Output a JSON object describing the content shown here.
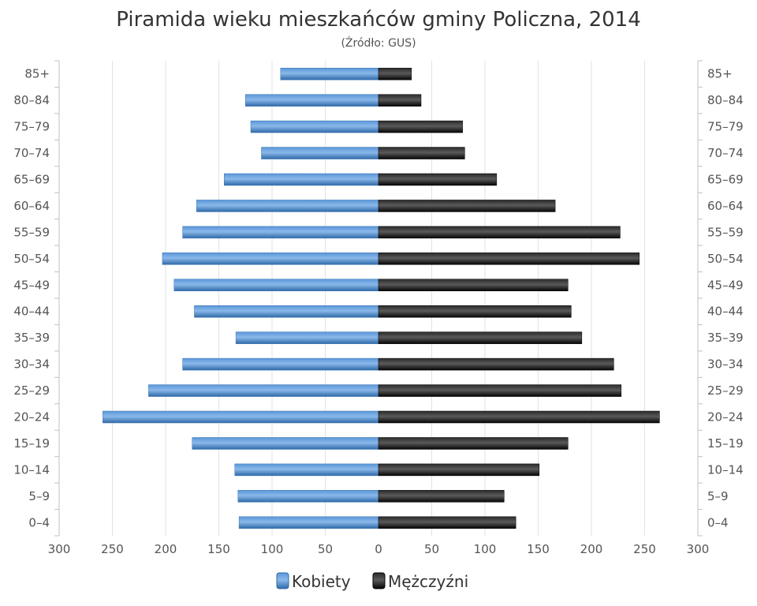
{
  "chart_data": {
    "type": "bar",
    "orientation": "horizontal",
    "title": "Piramida wieku mieszkańców gminy Policzna, 2014",
    "subtitle": "(Źródło: GUS)",
    "categories": [
      "0–4",
      "5–9",
      "10–14",
      "15–19",
      "20–24",
      "25–29",
      "30–34",
      "35–39",
      "40–44",
      "45–49",
      "50–54",
      "55–59",
      "60–64",
      "65–69",
      "70–74",
      "75–79",
      "80–84",
      "85+"
    ],
    "series": [
      {
        "name": "Kobiety",
        "color": "#4a86c8",
        "values": [
          131,
          132,
          135,
          175,
          259,
          216,
          184,
          134,
          173,
          192,
          203,
          184,
          171,
          145,
          110,
          120,
          125,
          92
        ]
      },
      {
        "name": "Mężczyźni",
        "color": "#1a1a1a",
        "values": [
          129,
          118,
          151,
          178,
          264,
          228,
          221,
          191,
          181,
          178,
          245,
          227,
          166,
          111,
          81,
          79,
          40,
          31
        ]
      }
    ],
    "xlim": [
      -300,
      300
    ],
    "x_ticks": [
      "300",
      "250",
      "200",
      "150",
      "100",
      "50",
      "0",
      "50",
      "100",
      "150",
      "200",
      "250",
      "300"
    ],
    "grid": true,
    "legend": "bottom"
  }
}
